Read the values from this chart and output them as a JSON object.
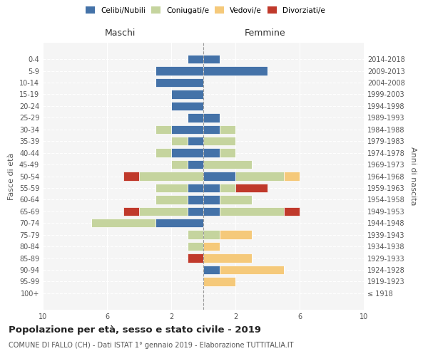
{
  "age_groups": [
    "100+",
    "95-99",
    "90-94",
    "85-89",
    "80-84",
    "75-79",
    "70-74",
    "65-69",
    "60-64",
    "55-59",
    "50-54",
    "45-49",
    "40-44",
    "35-39",
    "30-34",
    "25-29",
    "20-24",
    "15-19",
    "10-14",
    "5-9",
    "0-4"
  ],
  "birth_years": [
    "≤ 1918",
    "1919-1923",
    "1924-1928",
    "1929-1933",
    "1934-1938",
    "1939-1943",
    "1944-1948",
    "1949-1953",
    "1954-1958",
    "1959-1963",
    "1964-1968",
    "1969-1973",
    "1974-1978",
    "1979-1983",
    "1984-1988",
    "1989-1993",
    "1994-1998",
    "1999-2003",
    "2004-2008",
    "2009-2013",
    "2014-2018"
  ],
  "colors": {
    "celibi": "#4472a8",
    "coniugati": "#c5d49e",
    "vedovi": "#f5c97a",
    "divorziati": "#c0392b"
  },
  "legend_labels": [
    "Celibi/Nubili",
    "Coniugati/e",
    "Vedovi/e",
    "Divorziati/e"
  ],
  "maschi": {
    "celibi": [
      0,
      0,
      0,
      0,
      0,
      0,
      3,
      1,
      1,
      1,
      0,
      1,
      2,
      1,
      2,
      1,
      2,
      2,
      3,
      3,
      1
    ],
    "coniugati": [
      0,
      0,
      0,
      0,
      1,
      1,
      4,
      3,
      2,
      2,
      4,
      1,
      1,
      1,
      1,
      0,
      0,
      0,
      0,
      0,
      0
    ],
    "vedovi": [
      0,
      0,
      0,
      0,
      0,
      0,
      0,
      0,
      0,
      0,
      0,
      0,
      0,
      0,
      0,
      0,
      0,
      0,
      0,
      0,
      0
    ],
    "divorziati": [
      0,
      0,
      0,
      1,
      0,
      0,
      0,
      1,
      0,
      0,
      1,
      0,
      0,
      0,
      0,
      0,
      0,
      0,
      0,
      0,
      0
    ]
  },
  "femmine": {
    "nubili": [
      0,
      0,
      1,
      0,
      0,
      0,
      0,
      1,
      1,
      1,
      2,
      0,
      1,
      0,
      1,
      1,
      0,
      0,
      0,
      4,
      1
    ],
    "coniugate": [
      0,
      0,
      0,
      0,
      0,
      1,
      0,
      4,
      2,
      1,
      3,
      3,
      1,
      2,
      1,
      0,
      0,
      0,
      0,
      0,
      0
    ],
    "vedove": [
      0,
      2,
      4,
      3,
      1,
      2,
      0,
      0,
      0,
      0,
      1,
      0,
      0,
      0,
      0,
      0,
      0,
      0,
      0,
      0,
      0
    ],
    "divorziate": [
      0,
      0,
      0,
      0,
      0,
      0,
      0,
      1,
      0,
      2,
      0,
      0,
      0,
      0,
      0,
      0,
      0,
      0,
      0,
      0,
      0
    ]
  },
  "xlim": 10,
  "title": "Popolazione per età, sesso e stato civile - 2019",
  "subtitle": "COMUNE DI FALLO (CH) - Dati ISTAT 1° gennaio 2019 - Elaborazione TUTTITALIA.IT",
  "ylabel_left": "Fasce di età",
  "ylabel_right": "Anni di nascita",
  "xlabel_left": "Maschi",
  "xlabel_right": "Femmine",
  "background_color": "#f5f5f5"
}
